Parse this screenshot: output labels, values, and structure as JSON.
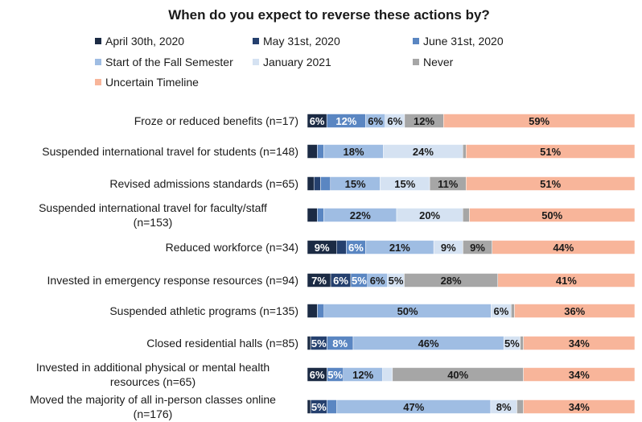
{
  "chart_data": {
    "type": "bar",
    "orientation": "horizontal",
    "stacked": true,
    "title": "When do you expect to reverse these actions by?",
    "xlabel": "",
    "ylabel": "",
    "xlim": [
      0,
      100
    ],
    "grid": false,
    "legend_position": "top",
    "categories": [
      "Froze or reduced benefits (n=17)",
      "Suspended international travel for students (n=148)",
      "Revised admissions standards (n=65)",
      "Suspended international travel for faculty/staff (n=153)",
      "Reduced workforce (n=34)",
      "Invested in emergency response resources (n=94)",
      "Suspended athletic programs (n=135)",
      "Closed residential halls (n=85)",
      "Invested in additional physical or mental health resources (n=65)",
      "Moved the majority of all in-person classes online (n=176)"
    ],
    "series": [
      {
        "name": "April 30th, 2020",
        "color": "#1c2b44",
        "values": [
          6,
          3,
          2,
          3,
          9,
          7,
          3,
          1,
          6,
          1
        ],
        "labels": [
          "6%",
          "",
          "",
          "",
          "9%",
          "7%",
          "",
          "",
          "6%",
          ""
        ]
      },
      {
        "name": "May 31st, 2020",
        "color": "#25406e",
        "values": [
          0,
          0,
          2,
          0,
          3,
          6,
          0,
          5,
          0,
          5
        ],
        "labels": [
          "",
          "",
          "",
          "",
          "",
          "6%",
          "",
          "5%",
          "",
          "5%"
        ]
      },
      {
        "name": "June 31st, 2020",
        "color": "#5a86c2",
        "values": [
          12,
          2,
          3,
          2,
          6,
          5,
          2,
          8,
          5,
          3
        ],
        "labels": [
          "12%",
          "",
          "",
          "",
          "6%",
          "5%",
          "",
          "8%",
          "5%",
          ""
        ]
      },
      {
        "name": "Start of the Fall Semester",
        "color": "#9fbde3",
        "values": [
          6,
          18,
          15,
          22,
          21,
          6,
          50,
          46,
          12,
          47
        ],
        "labels": [
          "6%",
          "18%",
          "15%",
          "22%",
          "21%",
          "6%",
          "50%",
          "46%",
          "12%",
          "47%"
        ]
      },
      {
        "name": "January 2021",
        "color": "#d5e2f2",
        "values": [
          6,
          24,
          15,
          20,
          9,
          5,
          6,
          5,
          3,
          8
        ],
        "labels": [
          "6%",
          "24%",
          "15%",
          "20%",
          "9%",
          "5%",
          "6%",
          "5%",
          "",
          "8%"
        ]
      },
      {
        "name": "Never",
        "color": "#a6a6a6",
        "values": [
          12,
          1,
          11,
          2,
          9,
          28,
          1,
          1,
          40,
          2
        ],
        "labels": [
          "12%",
          "",
          "11%",
          "",
          "9%",
          "28%",
          "",
          "",
          "40%",
          ""
        ]
      },
      {
        "name": "Uncertain Timeline",
        "color": "#f8b59a",
        "values": [
          59,
          51,
          51,
          50,
          44,
          41,
          36,
          34,
          34,
          34
        ],
        "labels": [
          "59%",
          "51%",
          "51%",
          "50%",
          "44%",
          "41%",
          "36%",
          "34%",
          "34%",
          "34%"
        ]
      }
    ]
  }
}
